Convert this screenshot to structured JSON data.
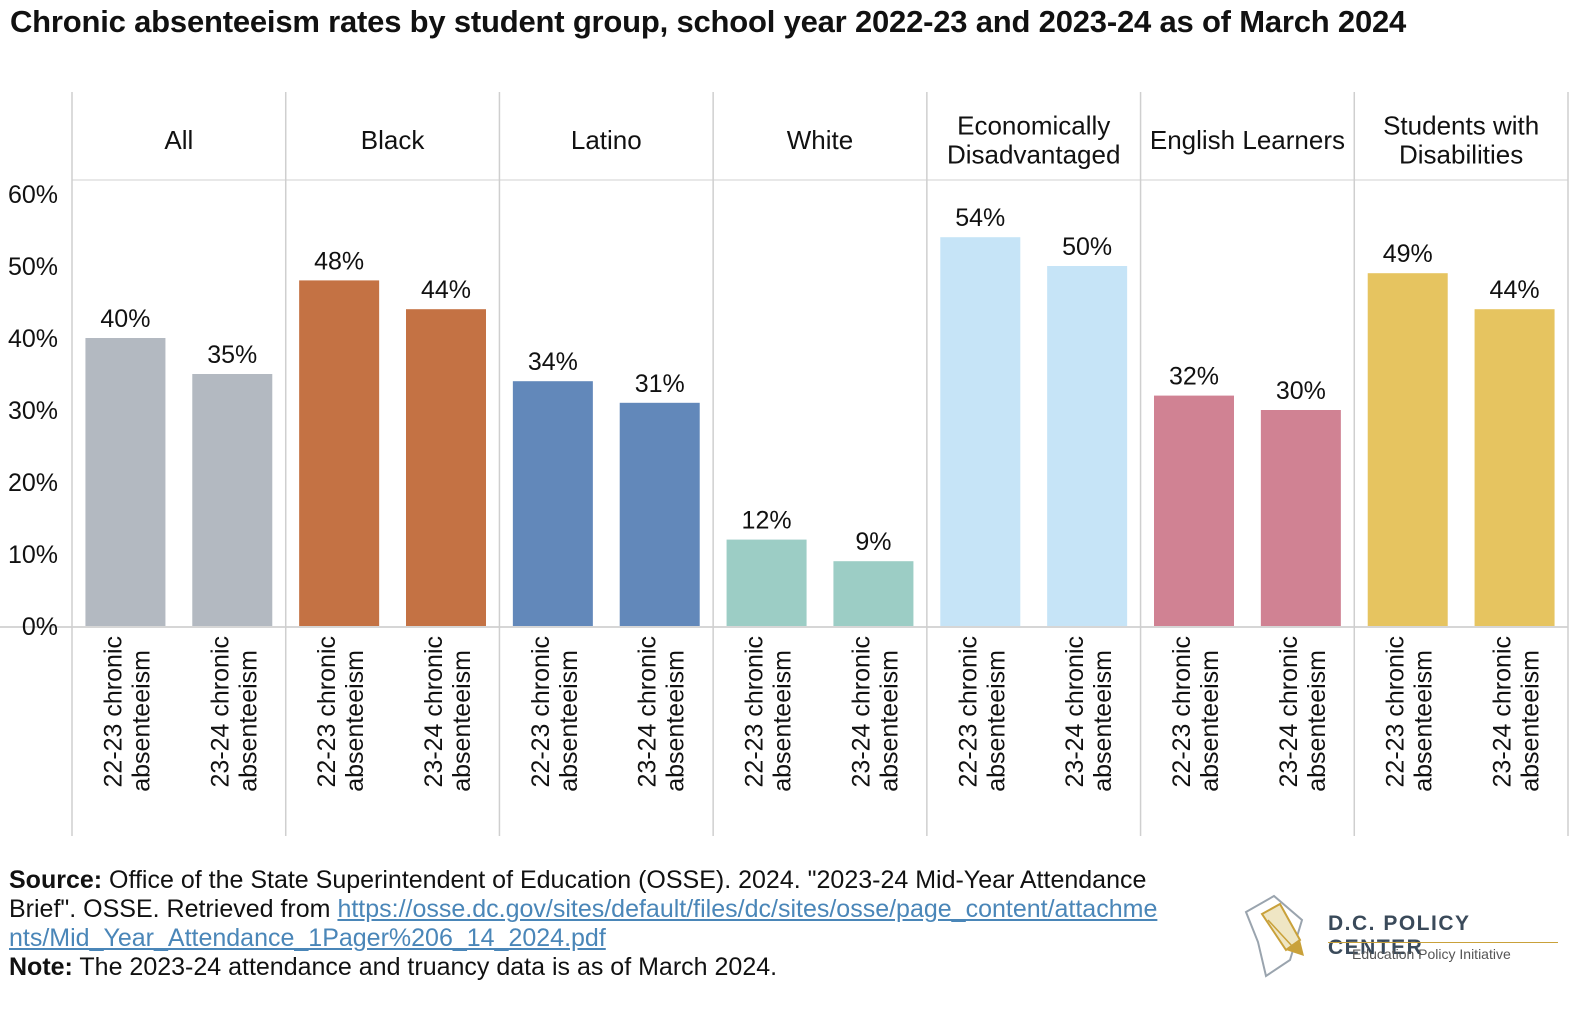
{
  "title": "Chronic absenteeism rates by student group, school year 2022-23 and 2023-24 as of March 2024",
  "chart_data": {
    "type": "bar",
    "ylim": [
      0,
      60
    ],
    "yticks": [
      "0%",
      "10%",
      "20%",
      "30%",
      "40%",
      "50%",
      "60%"
    ],
    "ytick_values": [
      0,
      10,
      20,
      30,
      40,
      50,
      60
    ],
    "bar_labels": [
      "22-23 chronic absenteeism",
      "23-24 chronic absenteeism"
    ],
    "groups": [
      {
        "name": "All",
        "color": "#b3b9c1",
        "values": [
          40,
          35
        ],
        "labels": [
          "40%",
          "35%"
        ]
      },
      {
        "name": "Black",
        "color": "#c47244",
        "values": [
          48,
          44
        ],
        "labels": [
          "48%",
          "44%"
        ]
      },
      {
        "name": "Latino",
        "color": "#6288ba",
        "values": [
          34,
          31
        ],
        "labels": [
          "34%",
          "31%"
        ]
      },
      {
        "name": "White",
        "color": "#9ccdc5",
        "values": [
          12,
          9
        ],
        "labels": [
          "12%",
          "9%"
        ]
      },
      {
        "name": "Economically Disadvantaged",
        "color": "#c6e4f7",
        "values": [
          54,
          50
        ],
        "labels": [
          "54%",
          "50%"
        ]
      },
      {
        "name": "English Learners",
        "color": "#d08293",
        "values": [
          32,
          30
        ],
        "labels": [
          "32%",
          "30%"
        ]
      },
      {
        "name": "Students with Disabilities",
        "color": "#e6c460",
        "values": [
          49,
          44
        ],
        "labels": [
          "49%",
          "44%"
        ]
      }
    ]
  },
  "footer": {
    "source_label": "Source:",
    "source_text": "Office of the State Superintendent of Education (OSSE). 2024. \"2023-24 Mid-Year Attendance Brief\". OSSE. Retrieved from",
    "source_url": "https://osse.dc.gov/sites/default/files/dc/sites/osse/page_content/attachments/Mid_Year_Attendance_1Pager%206_14_2024.pdf",
    "note_label": "Note:",
    "note_text": "The 2023-24 attendance and truancy data is as of March 2024."
  },
  "logo": {
    "name": "D.C. POLICY CENTER",
    "subtitle": "Education Policy Initiative"
  }
}
